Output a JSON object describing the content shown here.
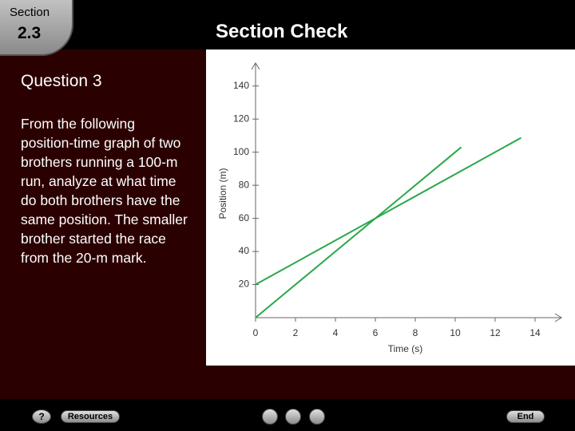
{
  "header": {
    "section_label": "Section",
    "section_number": "2.3",
    "title": "Section Check"
  },
  "question": {
    "heading": "Question 3",
    "text": "From the following position-time graph of two brothers running a 100-m run, analyze at what time do both brothers have the same position. The smaller brother started the race from the 20-m mark."
  },
  "chart_data": {
    "type": "line",
    "x_label": "Time (s)",
    "y_label": "Position (m)",
    "series": [
      {
        "color": "#2aa84a",
        "x": [
          0,
          10.3
        ],
        "values": [
          0,
          103
        ]
      },
      {
        "color": "#2aa84a",
        "x": [
          0,
          13.3
        ],
        "values": [
          20,
          108.7
        ]
      }
    ],
    "xlim": [
      0,
      15
    ],
    "ylim": [
      0,
      150
    ],
    "xticks": [
      0,
      2,
      4,
      6,
      8,
      10,
      12,
      14
    ],
    "yticks": [
      20,
      40,
      60,
      80,
      100,
      120,
      140
    ],
    "grid": false
  },
  "footer": {
    "help": "?",
    "resources": "Resources",
    "end": "End"
  }
}
